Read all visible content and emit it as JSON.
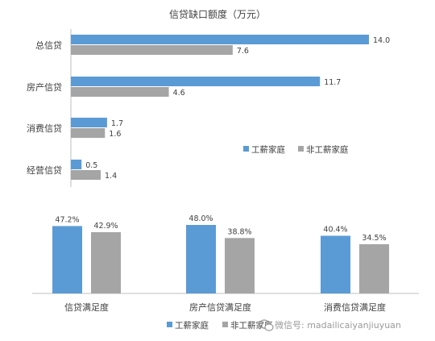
{
  "watermark": {
    "text": "微信号: madailicaiyanjiuyuan",
    "icon": "wechat-icon"
  },
  "colors": {
    "wage_household": "#5b9bd5",
    "non_wage_household": "#a5a5a5",
    "axis": "#bfbfbf",
    "text": "#404040"
  },
  "chart_data": [
    {
      "type": "bar",
      "orientation": "horizontal",
      "title": "信贷缺口额度（万元）",
      "categories": [
        "总信贷",
        "房产信贷",
        "消费信贷",
        "经营信贷"
      ],
      "series": [
        {
          "name": "工薪家庭",
          "values": [
            14.0,
            11.7,
            1.7,
            0.5
          ]
        },
        {
          "name": "非工薪家庭",
          "values": [
            7.6,
            4.6,
            1.6,
            1.4
          ]
        }
      ],
      "value_labels": [
        [
          "14.0",
          "11.7",
          "1.7",
          "0.5"
        ],
        [
          "7.6",
          "4.6",
          "1.6",
          "1.4"
        ]
      ],
      "xlim": [
        0,
        14
      ],
      "legend": "right",
      "grid": false
    },
    {
      "type": "bar",
      "orientation": "vertical",
      "title": "",
      "categories": [
        "信贷满足度",
        "房产信贷满足度",
        "消费信贷满足度"
      ],
      "series": [
        {
          "name": "工薪家庭",
          "values": [
            47.2,
            48.0,
            40.4
          ]
        },
        {
          "name": "非工薪家庭",
          "values": [
            42.9,
            38.8,
            34.5
          ]
        }
      ],
      "value_labels": [
        [
          "47.2%",
          "48.0%",
          "40.4%"
        ],
        [
          "42.9%",
          "38.8%",
          "34.5%"
        ]
      ],
      "ylim": [
        0,
        48
      ],
      "unit": "%",
      "legend": "bottom",
      "grid": false
    }
  ]
}
